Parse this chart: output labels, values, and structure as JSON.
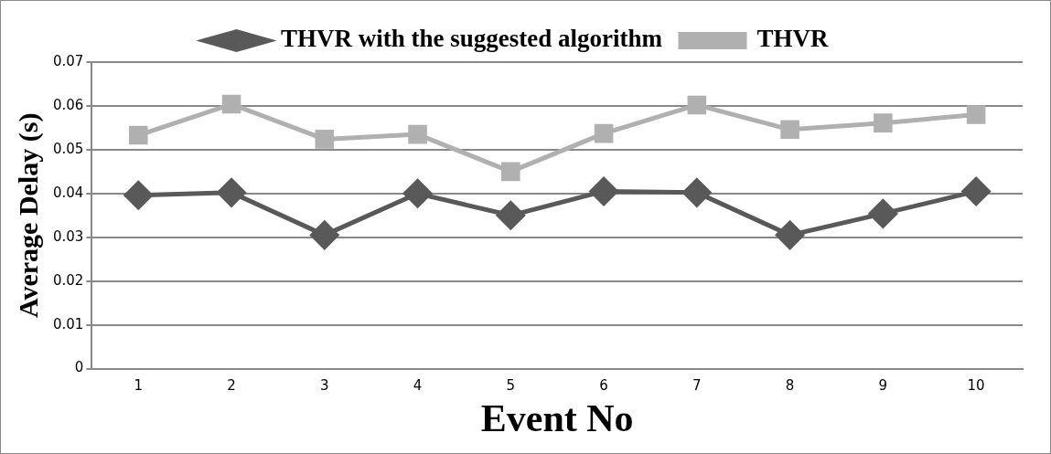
{
  "chart_data": {
    "type": "line",
    "xlabel": "Event No",
    "ylabel": "Average Delay (s)",
    "categories": [
      "1",
      "2",
      "3",
      "4",
      "5",
      "6",
      "7",
      "8",
      "9",
      "10"
    ],
    "series": [
      {
        "name": "THVR with the suggested algorithm",
        "color": "#595959",
        "marker": "diamond",
        "values": [
          0.0396,
          0.0402,
          0.0305,
          0.04,
          0.035,
          0.0405,
          0.0402,
          0.0305,
          0.0354,
          0.0405
        ]
      },
      {
        "name": "THVR",
        "color": "#b0b0b0",
        "marker": "square",
        "values": [
          0.0533,
          0.0604,
          0.0524,
          0.0535,
          0.045,
          0.0537,
          0.0602,
          0.0546,
          0.0561,
          0.058
        ]
      }
    ],
    "ylim": [
      0,
      0.07
    ],
    "yticks": [
      0,
      0.01,
      0.02,
      0.03,
      0.04,
      0.05,
      0.06,
      0.07
    ],
    "grid": "y",
    "legend": "top",
    "line_style": "solid"
  }
}
